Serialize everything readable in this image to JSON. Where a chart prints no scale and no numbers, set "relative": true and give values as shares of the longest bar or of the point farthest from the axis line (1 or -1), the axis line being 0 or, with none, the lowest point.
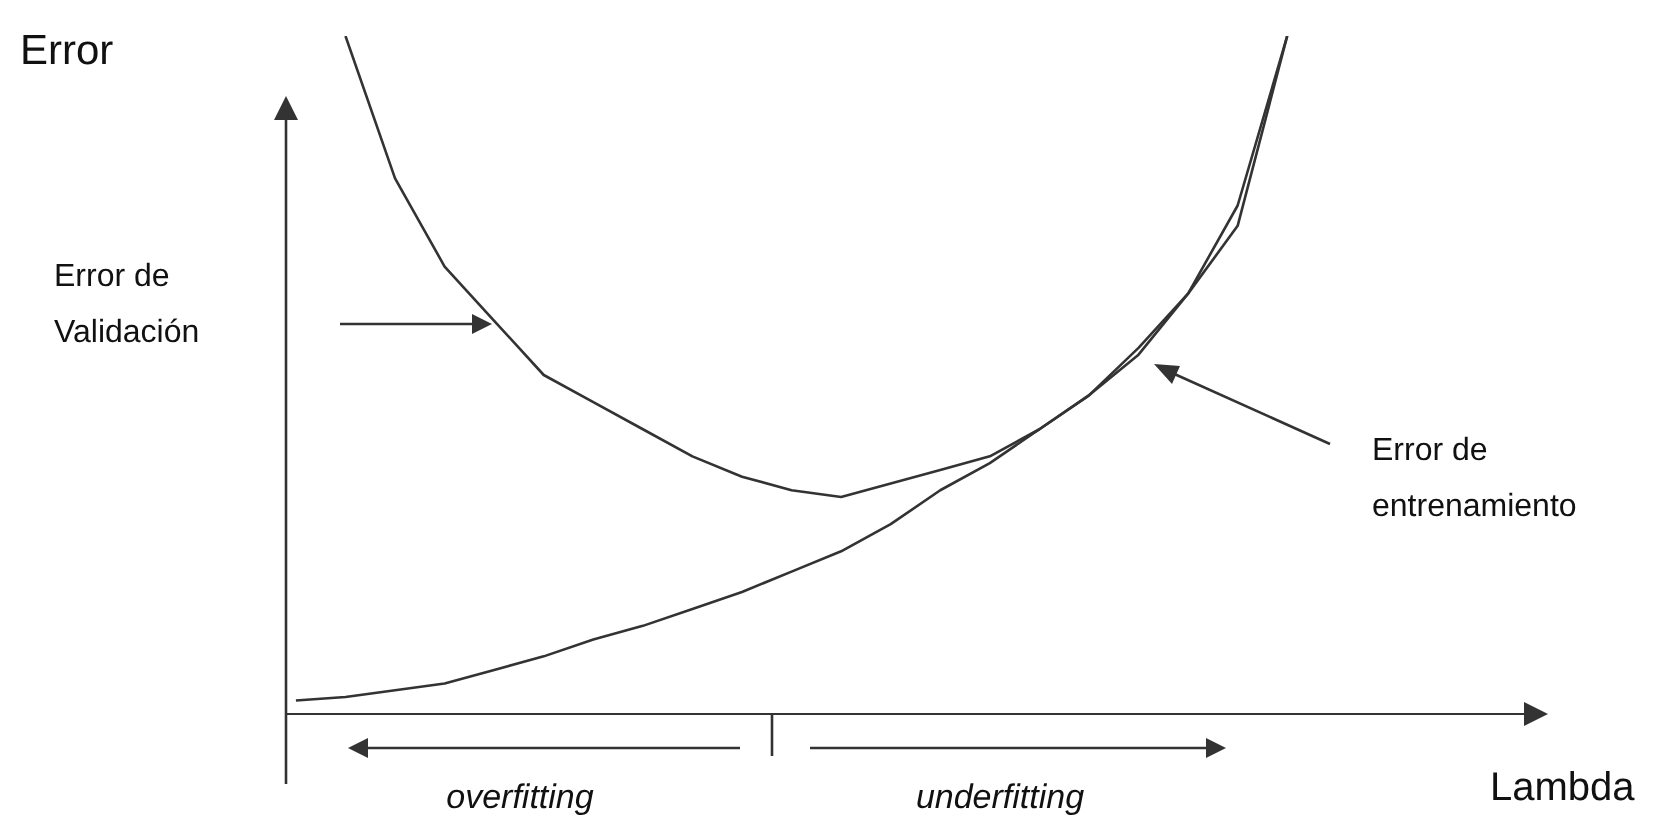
{
  "chart_data": {
    "type": "line",
    "relative": true,
    "xlabel": "Lambda",
    "ylabel": "Error",
    "grid": false,
    "legend": false,
    "marker": "none",
    "line_style": "solid",
    "categories": [
      null,
      null,
      null,
      null,
      null,
      null,
      null,
      null,
      null,
      null,
      null,
      null,
      null,
      null,
      null,
      null,
      null,
      null,
      null,
      null,
      null
    ],
    "series": [
      {
        "color": "#333333",
        "values": [
          null,
          1.0,
          0.79,
          0.66,
          0.58,
          0.5,
          0.46,
          0.42,
          0.38,
          0.35,
          0.33,
          0.32,
          0.34,
          0.36,
          0.38,
          0.42,
          0.47,
          0.54,
          0.62,
          0.75,
          1.0
        ]
      },
      {
        "color": "#333333",
        "values": [
          0.02,
          0.025,
          0.035,
          0.045,
          0.065,
          0.085,
          0.11,
          0.13,
          0.155,
          0.18,
          0.21,
          0.24,
          0.28,
          0.33,
          0.37,
          0.42,
          0.47,
          0.53,
          0.62,
          0.72,
          1.0
        ]
      }
    ],
    "annotations": [
      "Error de Validación",
      "Error de entrenamiento",
      "overfitting",
      "underfitting"
    ]
  }
}
